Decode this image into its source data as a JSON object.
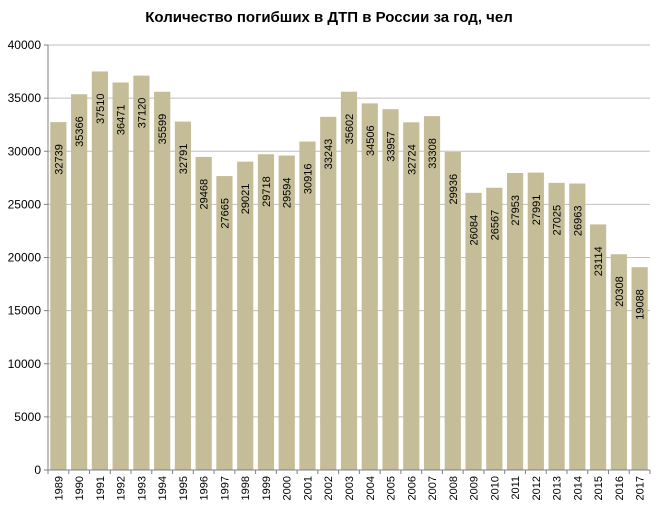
{
  "chart_data": {
    "type": "bar",
    "title": "Количество погибших  в ДТП в России за год, чел",
    "xlabel": "",
    "ylabel": "",
    "ylim": [
      0,
      40000
    ],
    "yticks": [
      "0",
      "5000",
      "10000",
      "15000",
      "20000",
      "25000",
      "30000",
      "35000",
      "40000"
    ],
    "grid": true,
    "legend": "none",
    "bar_color": "#c4bd97",
    "categories": [
      "1989",
      "1990",
      "1991",
      "1992",
      "1993",
      "1994",
      "1995",
      "1996",
      "1997",
      "1998",
      "1999",
      "2000",
      "2001",
      "2002",
      "2003",
      "2004",
      "2005",
      "2006",
      "2007",
      "2008",
      "2009",
      "2010",
      "2011",
      "2012",
      "2013",
      "2014",
      "2015",
      "2016",
      "2017"
    ],
    "values": [
      32739,
      35366,
      37510,
      36471,
      37120,
      35599,
      32791,
      29468,
      27665,
      29021,
      29718,
      29594,
      30916,
      33243,
      35602,
      34506,
      33957,
      32724,
      33308,
      29936,
      26084,
      26567,
      27953,
      27991,
      27025,
      26963,
      23114,
      20308,
      19088
    ],
    "data_labels": [
      "32739",
      "35366",
      "37510",
      "36471",
      "37120",
      "35599",
      "32791",
      "29468",
      "27665",
      "29021",
      "29718",
      "29594",
      "30916",
      "33243",
      "35602",
      "34506",
      "33957",
      "32724",
      "33308",
      "29936",
      "26084",
      "26567",
      "27953",
      "27991",
      "27025",
      "26963",
      "23114",
      "20308",
      "19088"
    ]
  }
}
